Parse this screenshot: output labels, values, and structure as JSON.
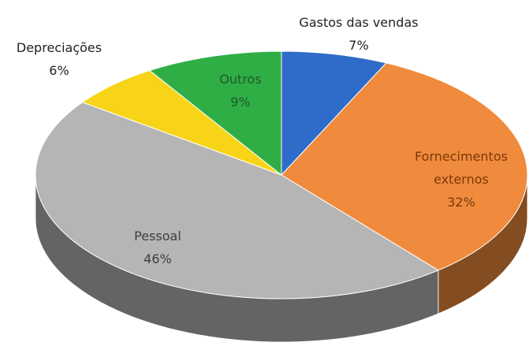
{
  "chart_data": {
    "type": "pie",
    "categories": [
      "Gastos das vendas",
      "Fornecimentos externos",
      "Pessoal",
      "Depreciações",
      "Outros"
    ],
    "values": [
      7,
      32,
      46,
      6,
      9
    ],
    "value_labels": [
      "7%",
      "32%",
      "46%",
      "6%",
      "9%"
    ],
    "colors": [
      "#2f6cc9",
      "#f08a3c",
      "#b5b5b5",
      "#f7d417",
      "#2fae45"
    ]
  }
}
